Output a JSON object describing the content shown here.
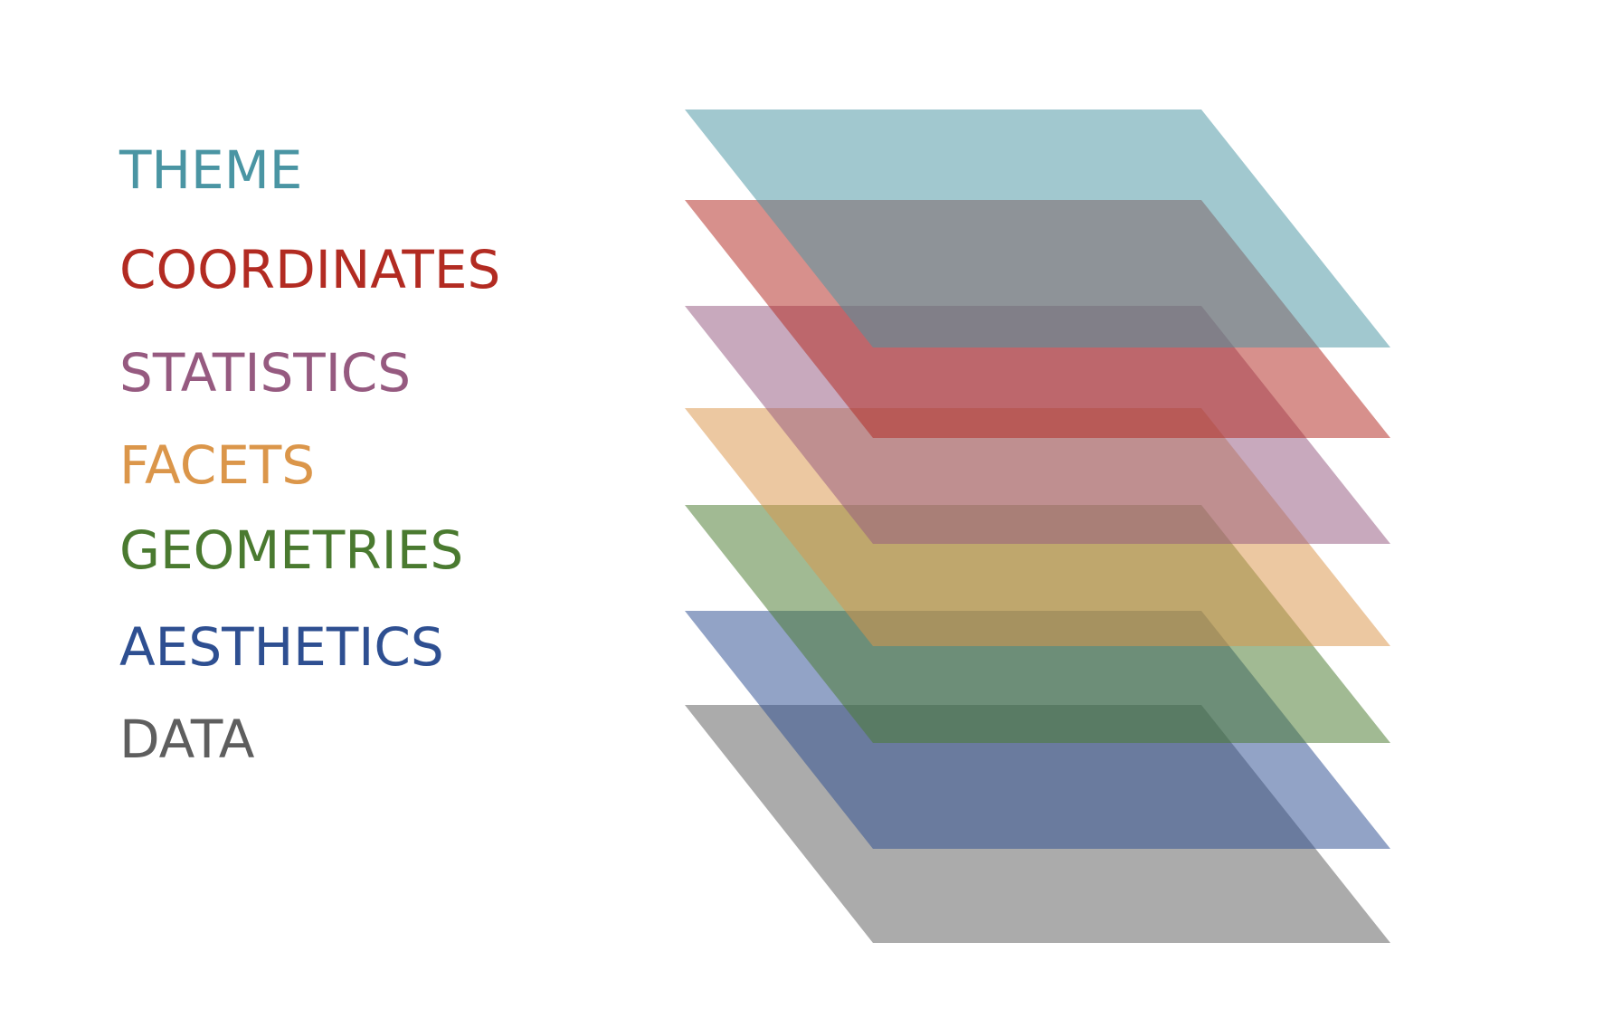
{
  "diagram": {
    "layers": [
      {
        "label": "THEME",
        "color": "#4A95A3"
      },
      {
        "label": "COORDINATES",
        "color": "#B22B22"
      },
      {
        "label": "STATISTICS",
        "color": "#965A80"
      },
      {
        "label": "FACETS",
        "color": "#DB964A"
      },
      {
        "label": "GEOMETRIES",
        "color": "#4A7A30"
      },
      {
        "label": "AESTHETICS",
        "color": "#2E4F91"
      },
      {
        "label": "DATA",
        "color": "#5E5E5E"
      }
    ]
  }
}
